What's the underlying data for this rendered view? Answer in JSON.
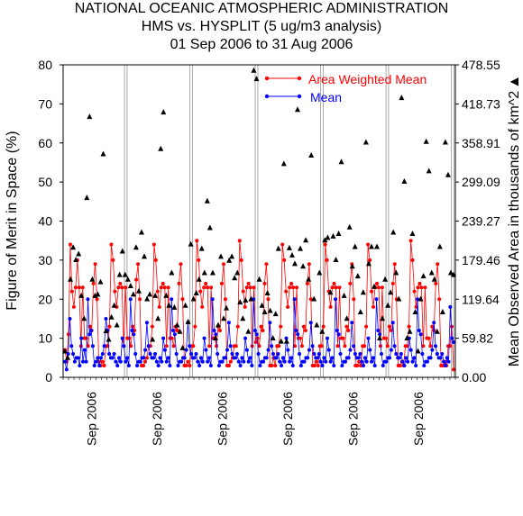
{
  "chart_data": {
    "type": "line",
    "title": [
      "NATIONAL OCEANIC ATMOSPHERIC ADMINISTRATION",
      "HMS vs. HYSPLIT (5 ug/m3 analysis)",
      "01 Sep 2006 to 31 Aug 2006"
    ],
    "ylabel": "Figure of Merit in Space (%)",
    "y2label": "Mean Observed Area in thousands of km^2",
    "y2label_symbol": "▲",
    "ylim": [
      0,
      80
    ],
    "yticks": [
      "0",
      "10",
      "20",
      "30",
      "40",
      "50",
      "60",
      "70",
      "80"
    ],
    "y2lim": [
      0,
      478.55
    ],
    "y2ticks": [
      "0.00",
      "59.82",
      "119.64",
      "179.46",
      "239.27",
      "299.09",
      "358.91",
      "418.73",
      "478.55"
    ],
    "xticks": [
      "Sep 2006",
      "Sep 2006",
      "Sep 2006",
      "Sep 2006",
      "Sep 2006",
      "Sep 2006"
    ],
    "legend_position": "top-right",
    "colors": {
      "awm": "#ff0000",
      "mean": "#0000ff",
      "area": "#000000",
      "grid": "#aaaaaa"
    },
    "series": [
      {
        "name": "Area Weighted Mean",
        "color": "#ff0000",
        "values": [
          7,
          4,
          11,
          34,
          22,
          18,
          23,
          30,
          23,
          8,
          23,
          10,
          10,
          8,
          13,
          12,
          24,
          29,
          20,
          4,
          3,
          4,
          3,
          8,
          8,
          13,
          34,
          30,
          22,
          18,
          23,
          24,
          23,
          8,
          23,
          10,
          10,
          8,
          13,
          12,
          25,
          29,
          20,
          3,
          3,
          4,
          5,
          8,
          8,
          13,
          34,
          30,
          22,
          18,
          23,
          24,
          23,
          8,
          23,
          10,
          10,
          8,
          13,
          12,
          24,
          29,
          20,
          3,
          3,
          4,
          3,
          8,
          8,
          13,
          35,
          30,
          22,
          18,
          23,
          24,
          23,
          8,
          23,
          10,
          10,
          8,
          13,
          12,
          24,
          29,
          20,
          3,
          3,
          4,
          5,
          8,
          8,
          13,
          35,
          30,
          22,
          18,
          23,
          24,
          23,
          8,
          23,
          9,
          10,
          8,
          13,
          12,
          24,
          29,
          20,
          3,
          3,
          5,
          3,
          8,
          8,
          13,
          34,
          30,
          22,
          18,
          23,
          24,
          23,
          8,
          23,
          10,
          10,
          8,
          13,
          12,
          24,
          29,
          20,
          3,
          3,
          4,
          3,
          8,
          8,
          13,
          34,
          30,
          22,
          18,
          23,
          24,
          23,
          8,
          23,
          10,
          10,
          8,
          13,
          12,
          24,
          29,
          20,
          3,
          3,
          4,
          3,
          8,
          8,
          13,
          34,
          30,
          22,
          18,
          23,
          24,
          23,
          8,
          23,
          10,
          10,
          8,
          13,
          12,
          24,
          29,
          20,
          3,
          3,
          4,
          3,
          8,
          8,
          13,
          35,
          30,
          22,
          18,
          23,
          24,
          23,
          8,
          23,
          10,
          10,
          8,
          13,
          12,
          24,
          29,
          20,
          3,
          3,
          4,
          3,
          8,
          8,
          13,
          2
        ]
      },
      {
        "name": "Mean",
        "color": "#0000ff",
        "values": [
          4,
          2,
          6,
          15,
          8,
          6,
          4,
          5,
          5,
          3,
          10,
          4,
          7,
          4,
          20,
          11,
          12,
          8,
          3,
          4,
          5,
          3,
          5,
          6,
          8,
          15,
          12,
          6,
          5,
          5,
          6,
          4,
          3,
          5,
          4,
          10,
          8,
          4,
          5,
          3,
          20,
          12,
          11,
          6,
          3,
          4,
          4,
          5,
          5,
          7,
          14,
          8,
          6,
          5,
          5,
          6,
          4,
          3,
          5,
          4,
          10,
          7,
          4,
          5,
          3,
          20,
          12,
          11,
          6,
          3,
          4,
          4,
          5,
          5,
          7,
          14,
          8,
          6,
          5,
          5,
          6,
          4,
          3,
          5,
          4,
          10,
          7,
          4,
          5,
          3,
          20,
          12,
          11,
          6,
          3,
          4,
          4,
          5,
          5,
          7,
          14,
          8,
          6,
          5,
          5,
          6,
          4,
          3,
          5,
          4,
          10,
          7,
          4,
          5,
          3,
          20,
          12,
          11,
          6,
          3,
          4,
          4,
          5,
          5,
          7,
          14,
          8,
          6,
          5,
          5,
          6,
          4,
          3,
          5,
          4,
          10,
          7,
          4,
          5,
          3,
          20,
          12,
          11,
          6,
          3,
          4,
          4,
          5,
          5,
          7,
          14,
          8,
          6,
          5,
          5,
          6,
          4,
          3,
          5,
          4,
          10,
          7,
          4,
          5,
          3,
          20,
          12,
          11,
          6,
          3,
          4,
          4,
          5,
          5,
          7,
          14,
          8,
          6,
          5,
          5,
          6,
          4,
          3,
          5,
          4,
          10,
          7,
          4,
          5,
          3,
          20,
          12,
          11,
          6,
          3,
          4,
          4,
          5,
          5,
          7,
          14,
          8,
          6,
          5,
          5,
          6,
          4,
          3,
          5,
          4,
          10,
          7,
          4,
          5,
          3,
          20,
          12,
          11,
          6,
          3,
          4,
          4,
          5,
          5,
          7,
          14,
          8,
          6,
          5,
          5,
          6,
          4,
          3,
          5,
          4,
          18,
          10,
          9
        ]
      },
      {
        "name": "Mean Observed Area",
        "color": "#000000",
        "axis": "right",
        "values": [
          40,
          30,
          150,
          199,
          180,
          189,
          125,
          90,
          275,
          399,
          150,
          125,
          127,
          146,
          342,
          71,
          58,
          92,
          110,
          80,
          157,
          193,
          157,
          150,
          140,
          127,
          199,
          132,
          222,
          185,
          120,
          127,
          58,
          125,
          90,
          350,
          406,
          125,
          110,
          160,
          107,
          80,
          70,
          45,
          110,
          85,
          204,
          120,
          129,
          150,
          197,
          160,
          270,
          229,
          160,
          60,
          80,
          185,
          90,
          106,
          179,
          185,
          152,
          160,
          115,
          90,
          118,
          70,
          120,
          470,
          457,
          150,
          110,
          100,
          129,
          102,
          60,
          97,
          197,
          55,
          327,
          55,
          198,
          187,
          174,
          410,
          197,
          170,
          210,
          150,
          340,
          120,
          80,
          160,
          70,
          210,
          214,
          130,
          216,
          180,
          220,
          330,
          125,
          90,
          230,
          170,
          200,
          155,
          100,
          130,
          360,
          174,
          200,
          139,
          200,
          60,
          90,
          150,
          110,
          130,
          222,
          160,
          120,
          428,
          300,
          60,
          70,
          220,
          100,
          40,
          120,
          155,
          361,
          316,
          160,
          150,
          70,
          200,
          100,
          360,
          310,
          160,
          157
        ]
      }
    ]
  }
}
